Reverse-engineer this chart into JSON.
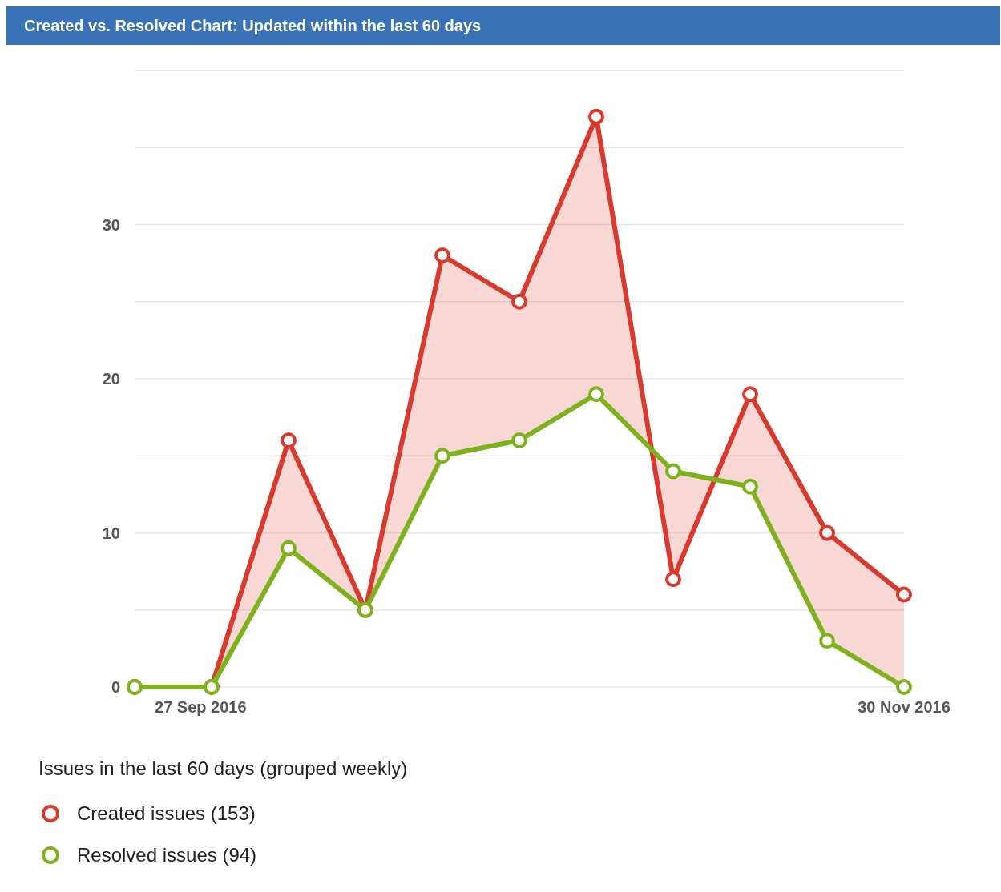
{
  "chart_data": {
    "type": "line",
    "title": "Created vs. Resolved Chart: Updated within the last 60 days",
    "legend_title": "Issues in the last 60 days (grouped weekly)",
    "x": [
      "2016-09-21",
      "2016-09-28",
      "2016-10-05",
      "2016-10-12",
      "2016-10-19",
      "2016-10-26",
      "2016-11-02",
      "2016-11-09",
      "2016-11-16",
      "2016-11-23",
      "2016-11-30"
    ],
    "series": [
      {
        "name": "Created issues (153)",
        "color": "#d83a2e",
        "values": [
          0,
          0,
          16,
          5,
          28,
          25,
          37,
          7,
          19,
          10,
          6
        ],
        "lower": [
          0,
          0,
          9,
          5,
          15,
          16,
          19,
          14,
          13,
          3,
          0
        ],
        "upper": [
          0,
          0,
          16,
          5,
          28,
          25,
          37,
          7,
          19,
          10,
          6
        ]
      },
      {
        "name": "Resolved issues (94)",
        "color": "#7db21c",
        "values": [
          0,
          0,
          9,
          5,
          15,
          16,
          19,
          14,
          13,
          3,
          0
        ]
      }
    ],
    "xlim": [
      "2016-09-21",
      "2016-11-30"
    ],
    "xticks": [
      {
        "value": "2016-09-27",
        "label": "27 Sep 2016"
      },
      {
        "value": "2016-11-30",
        "label": "30 Nov 2016"
      }
    ],
    "ylim": [
      0,
      40
    ],
    "yticks": [
      0,
      {
        "value": 5,
        "label": null
      },
      10,
      {
        "value": 15,
        "label": null
      },
      20,
      {
        "value": 25,
        "label": null
      },
      30,
      {
        "value": 35,
        "label": null
      },
      {
        "value": 40,
        "label": null
      }
    ],
    "grid": "y",
    "marker": "circle",
    "legend": "bottom",
    "line_style": "solid"
  }
}
